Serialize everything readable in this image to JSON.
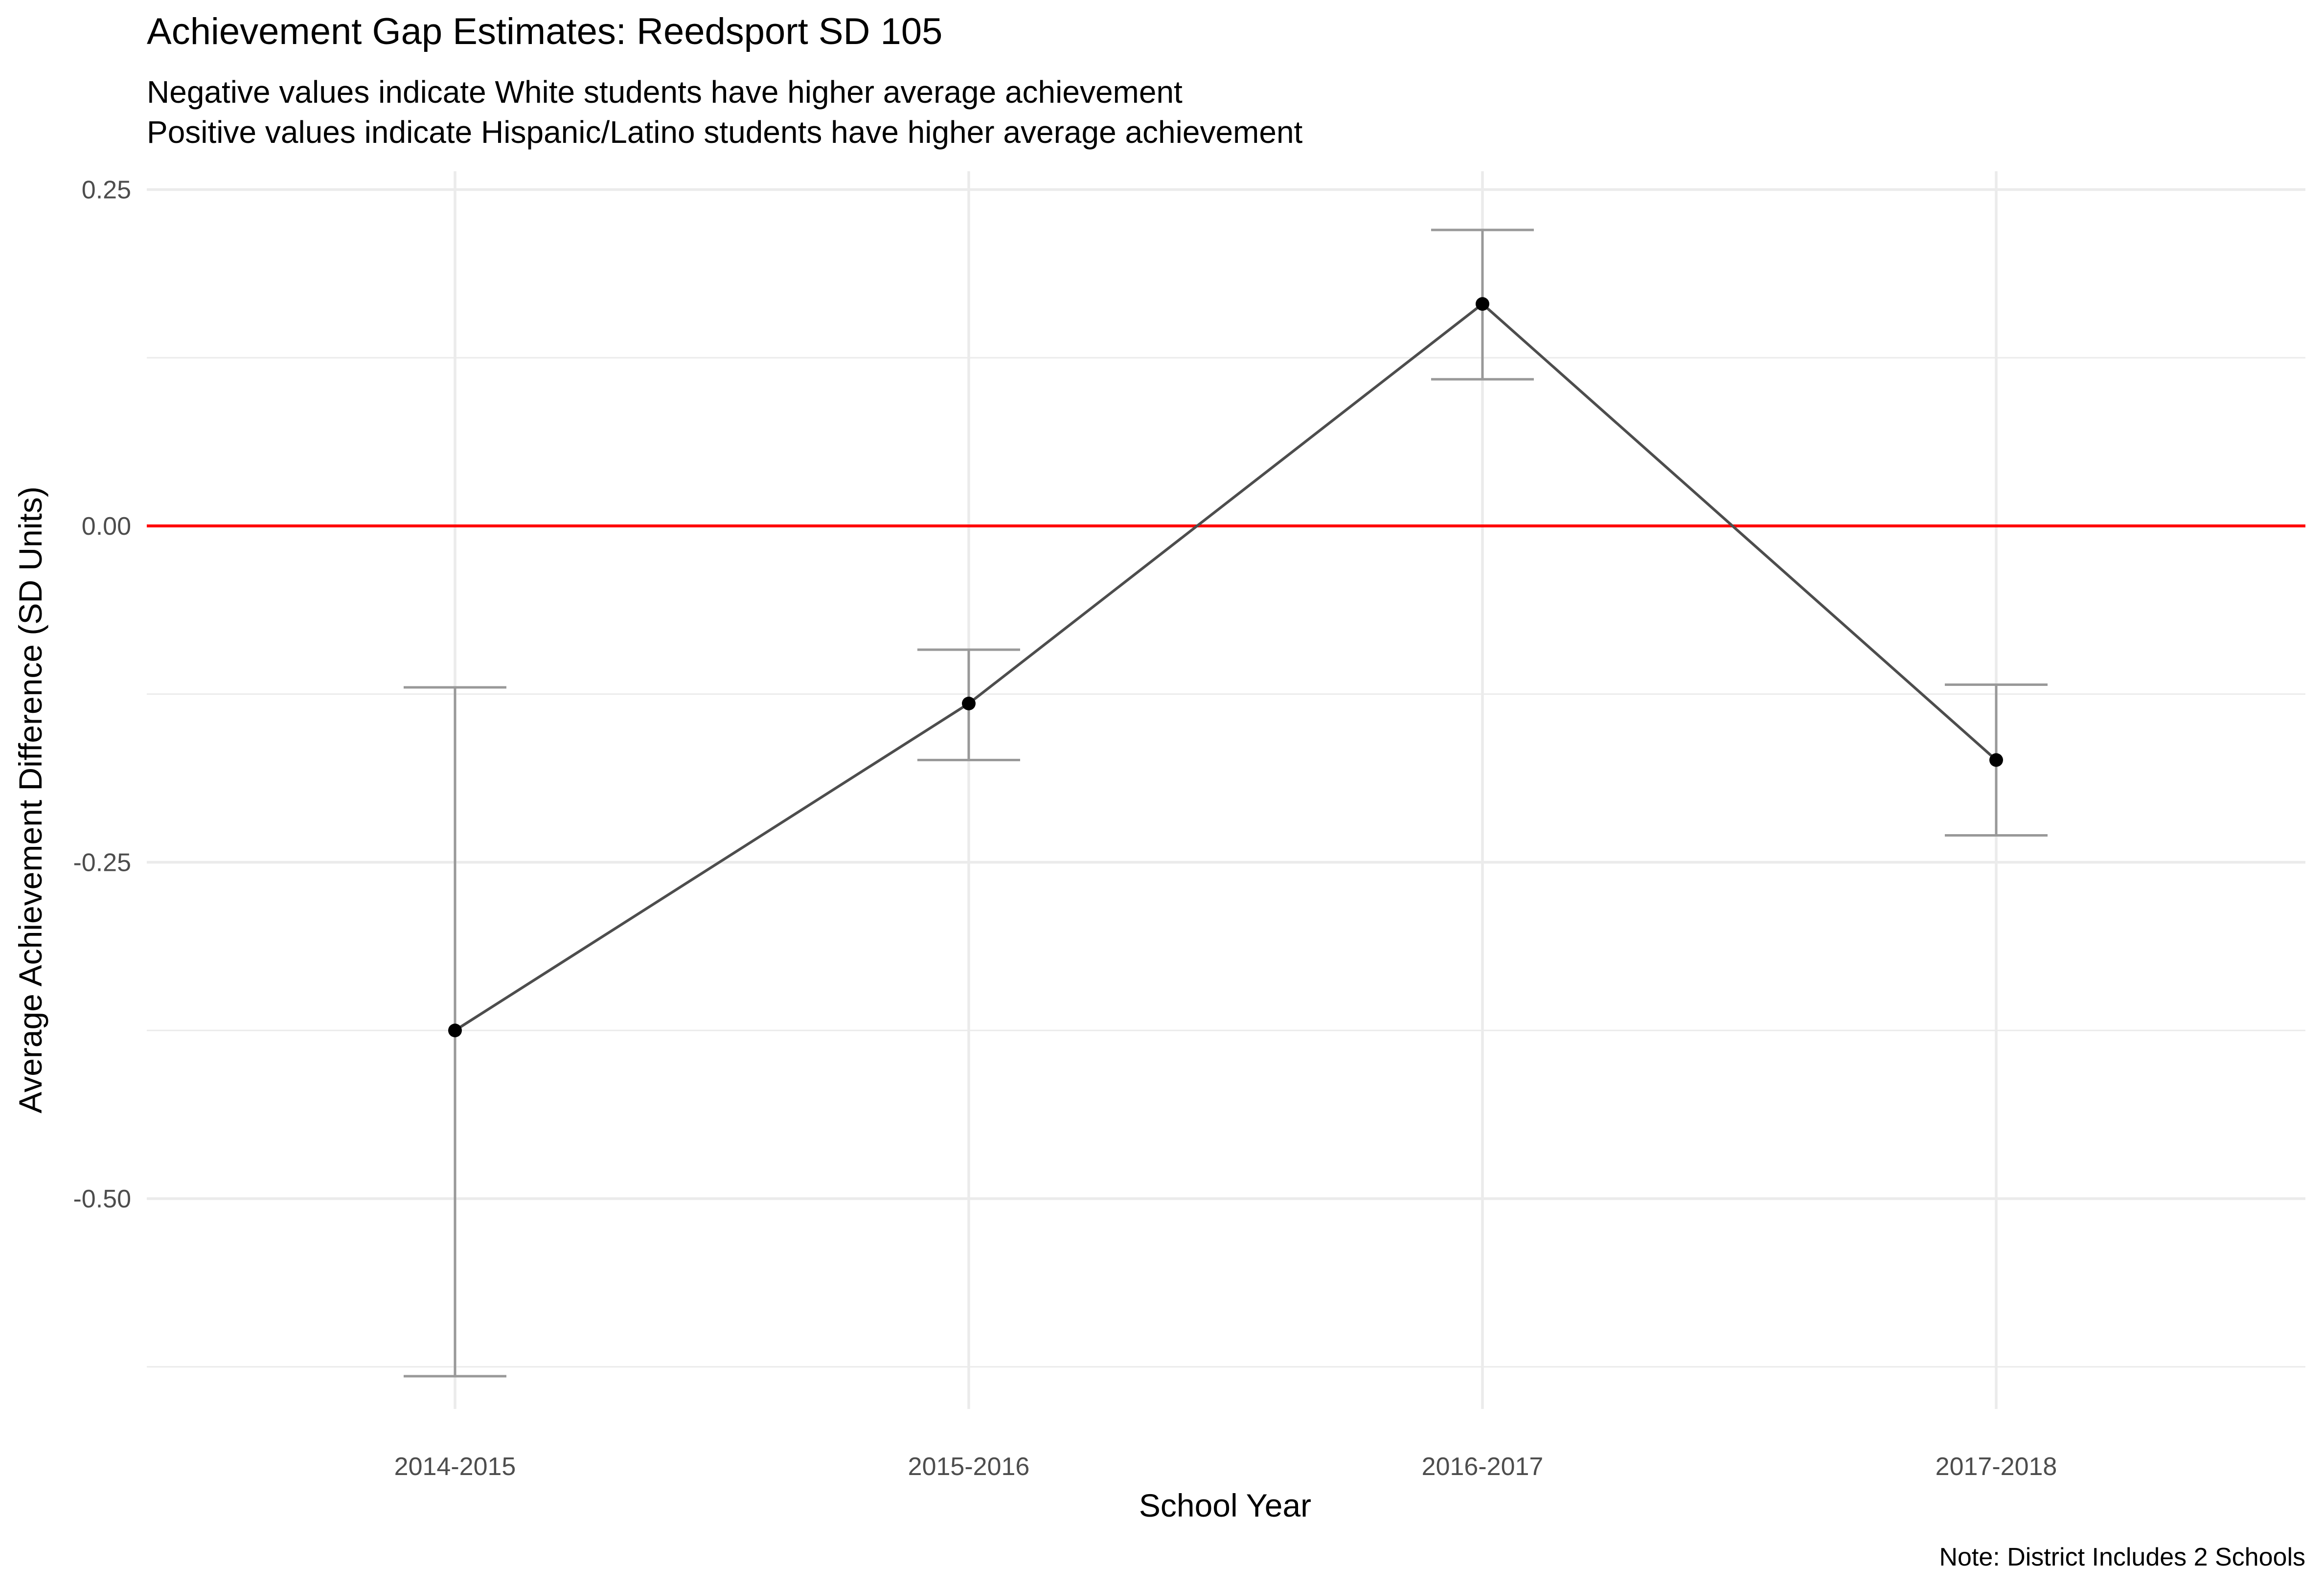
{
  "chart_data": {
    "type": "line",
    "title": "Achievement Gap Estimates: Reedsport SD 105",
    "subtitle_lines": [
      "Negative values indicate White students have higher average achievement",
      "Positive values indicate Hispanic/Latino students have higher average achievement"
    ],
    "xlabel": "School Year",
    "ylabel": "Average Achievement Difference (SD Units)",
    "caption": "Note: District Includes 2 Schools",
    "categories": [
      "2014-2015",
      "2015-2016",
      "2016-2017",
      "2017-2018"
    ],
    "series": [
      {
        "values": [
          -0.375,
          -0.132,
          0.165,
          -0.174
        ],
        "ci_lower": [
          -0.632,
          -0.174,
          0.109,
          -0.23
        ],
        "ci_upper": [
          -0.12,
          -0.092,
          0.22,
          -0.118
        ]
      }
    ],
    "y_ticks": [
      0.25,
      0.0,
      -0.25,
      -0.5
    ],
    "y_tick_labels": [
      "0.25",
      "0.00",
      "-0.25",
      "-0.50"
    ],
    "ylim": [
      -0.67,
      0.26
    ],
    "reference_line": 0,
    "grid": true,
    "colors": {
      "line": "#4d4d4d",
      "point": "#000000",
      "errorbar": "#999999",
      "reference": "#ff0000",
      "grid": "#ebebeb"
    }
  }
}
